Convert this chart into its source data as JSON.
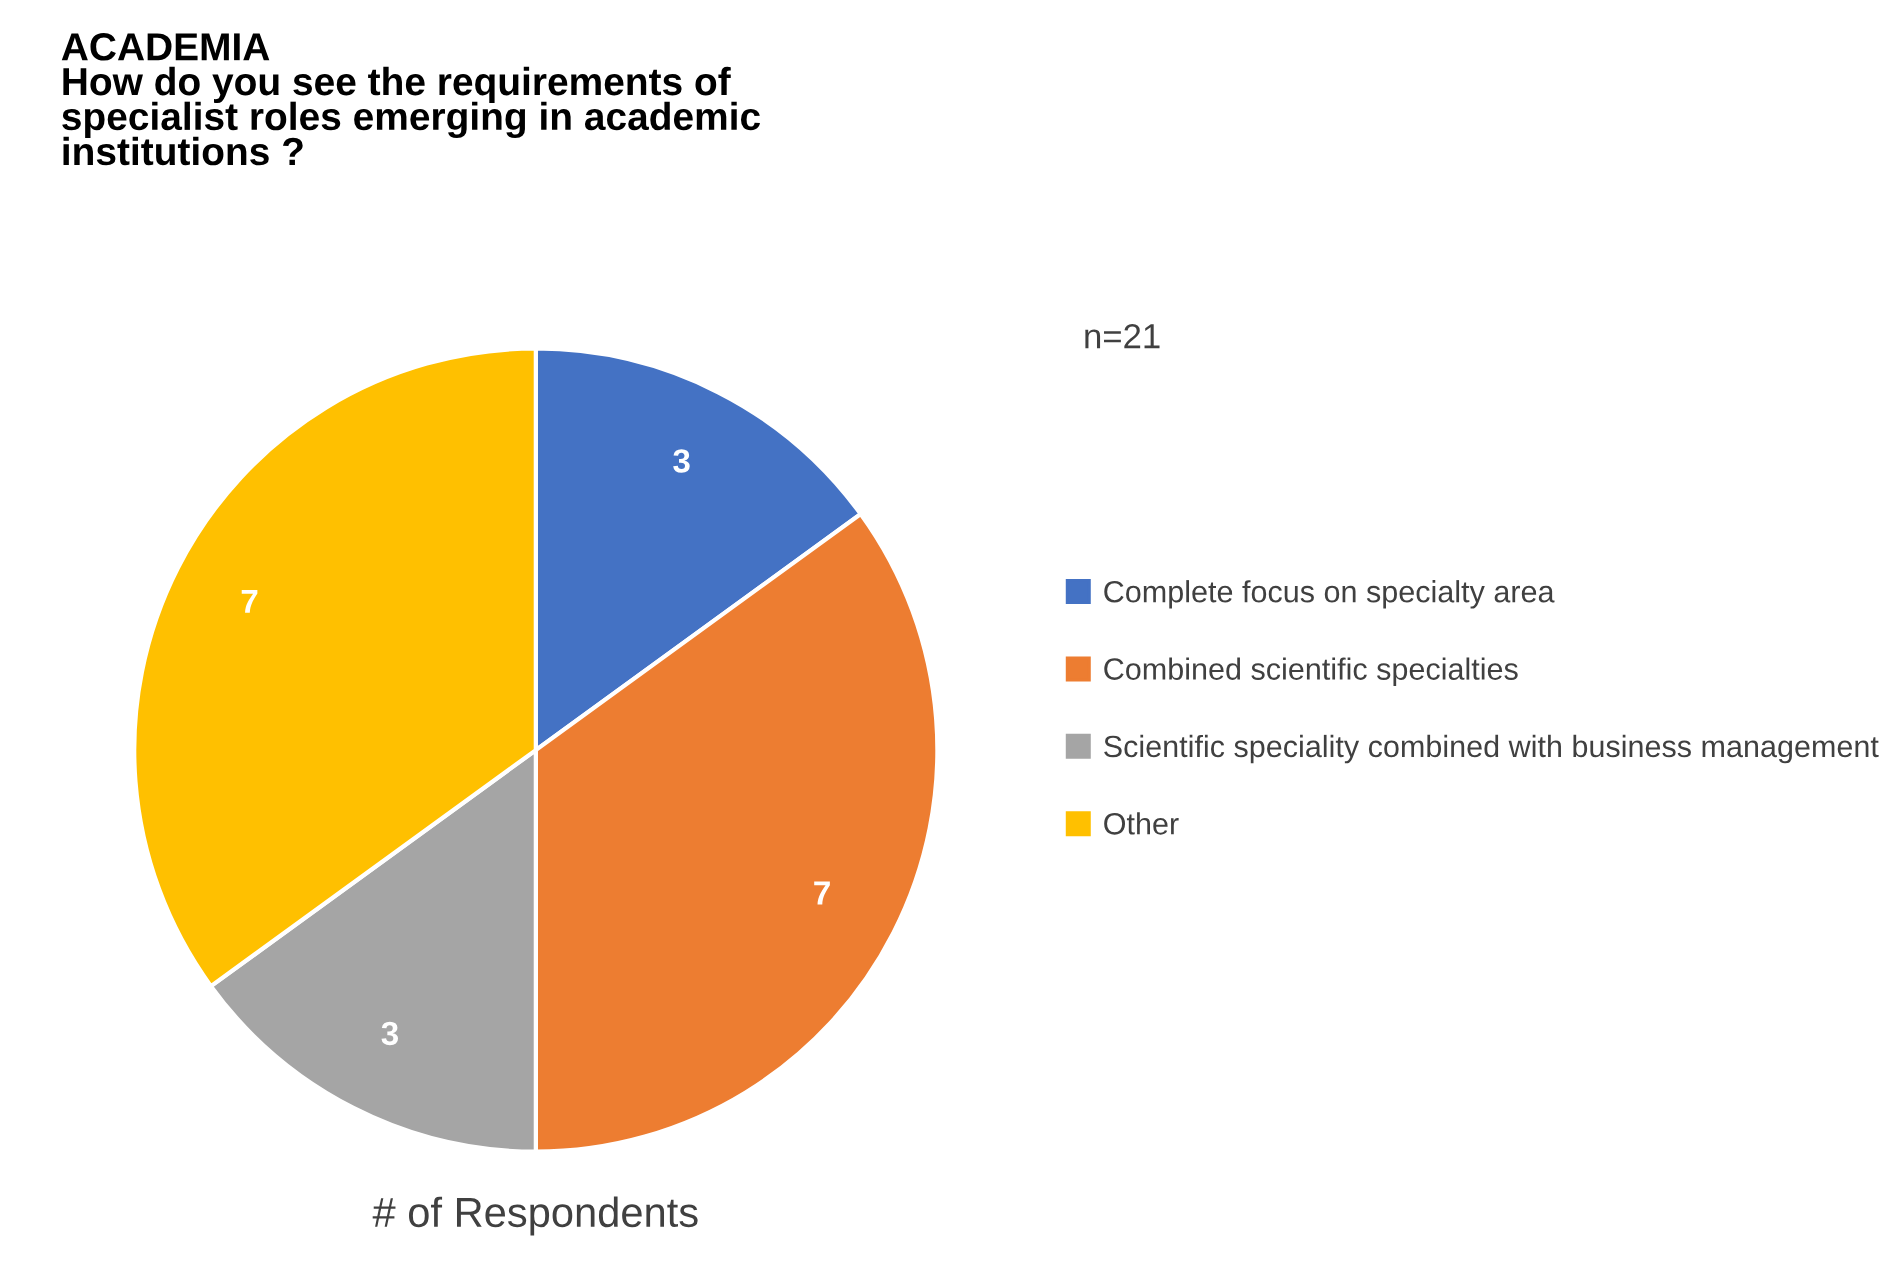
{
  "chart_data": {
    "type": "pie",
    "title": "ACADEMIA\nHow do you see the requirements of\nspecialist roles emerging in academic\ninstitutions ?",
    "xlabel": "# of Respondents",
    "annotations": [
      "n=21"
    ],
    "categories": [
      "Complete focus on specialty area",
      "Combined scientific specialties",
      "Scientific speciality combined with business management",
      "Other"
    ],
    "values": [
      3,
      7,
      3,
      7
    ],
    "colors": [
      "#4472c4",
      "#ed7d31",
      "#a5a5a5",
      "#ffc000"
    ],
    "data_labels": true,
    "legend": "right"
  }
}
